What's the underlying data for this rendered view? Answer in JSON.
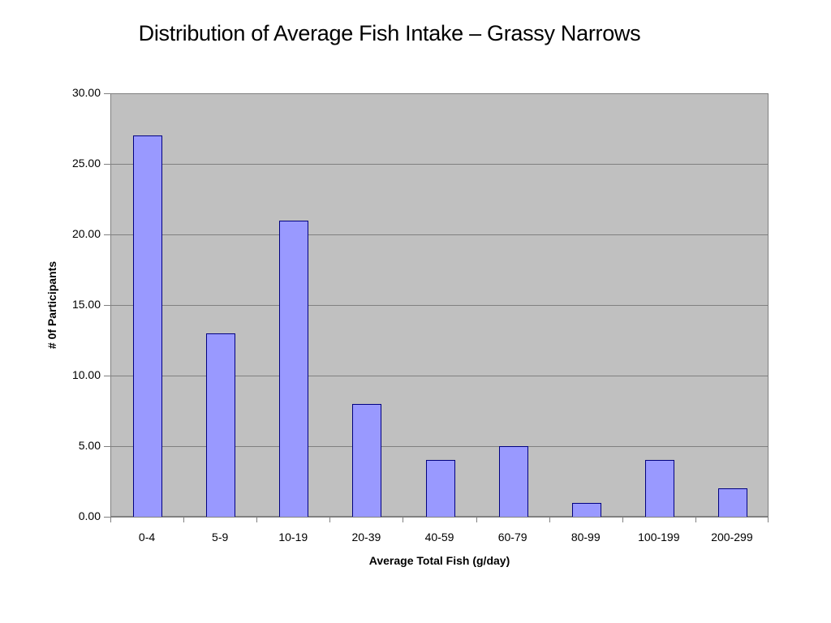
{
  "chart_data": {
    "type": "bar",
    "title": "Distribution of Average Fish Intake – Grassy Narrows",
    "xlabel": "Average Total Fish (g/day)",
    "ylabel": "# 0f Participants",
    "categories": [
      "0-4",
      "5-9",
      "10-19",
      "20-39",
      "40-59",
      "60-79",
      "80-99",
      "100-199",
      "200-299"
    ],
    "values": [
      27,
      13,
      21,
      8,
      4,
      5,
      1,
      4,
      2
    ],
    "ylim": [
      0,
      30
    ],
    "yticks": [
      "0.00",
      "5.00",
      "10.00",
      "15.00",
      "20.00",
      "25.00",
      "30.00"
    ],
    "grid": true,
    "legend": "none",
    "colors": {
      "bar_fill": "#9999ff",
      "bar_border": "#000080",
      "plot_background": "#c0c0c0",
      "gridline": "#808080"
    }
  }
}
